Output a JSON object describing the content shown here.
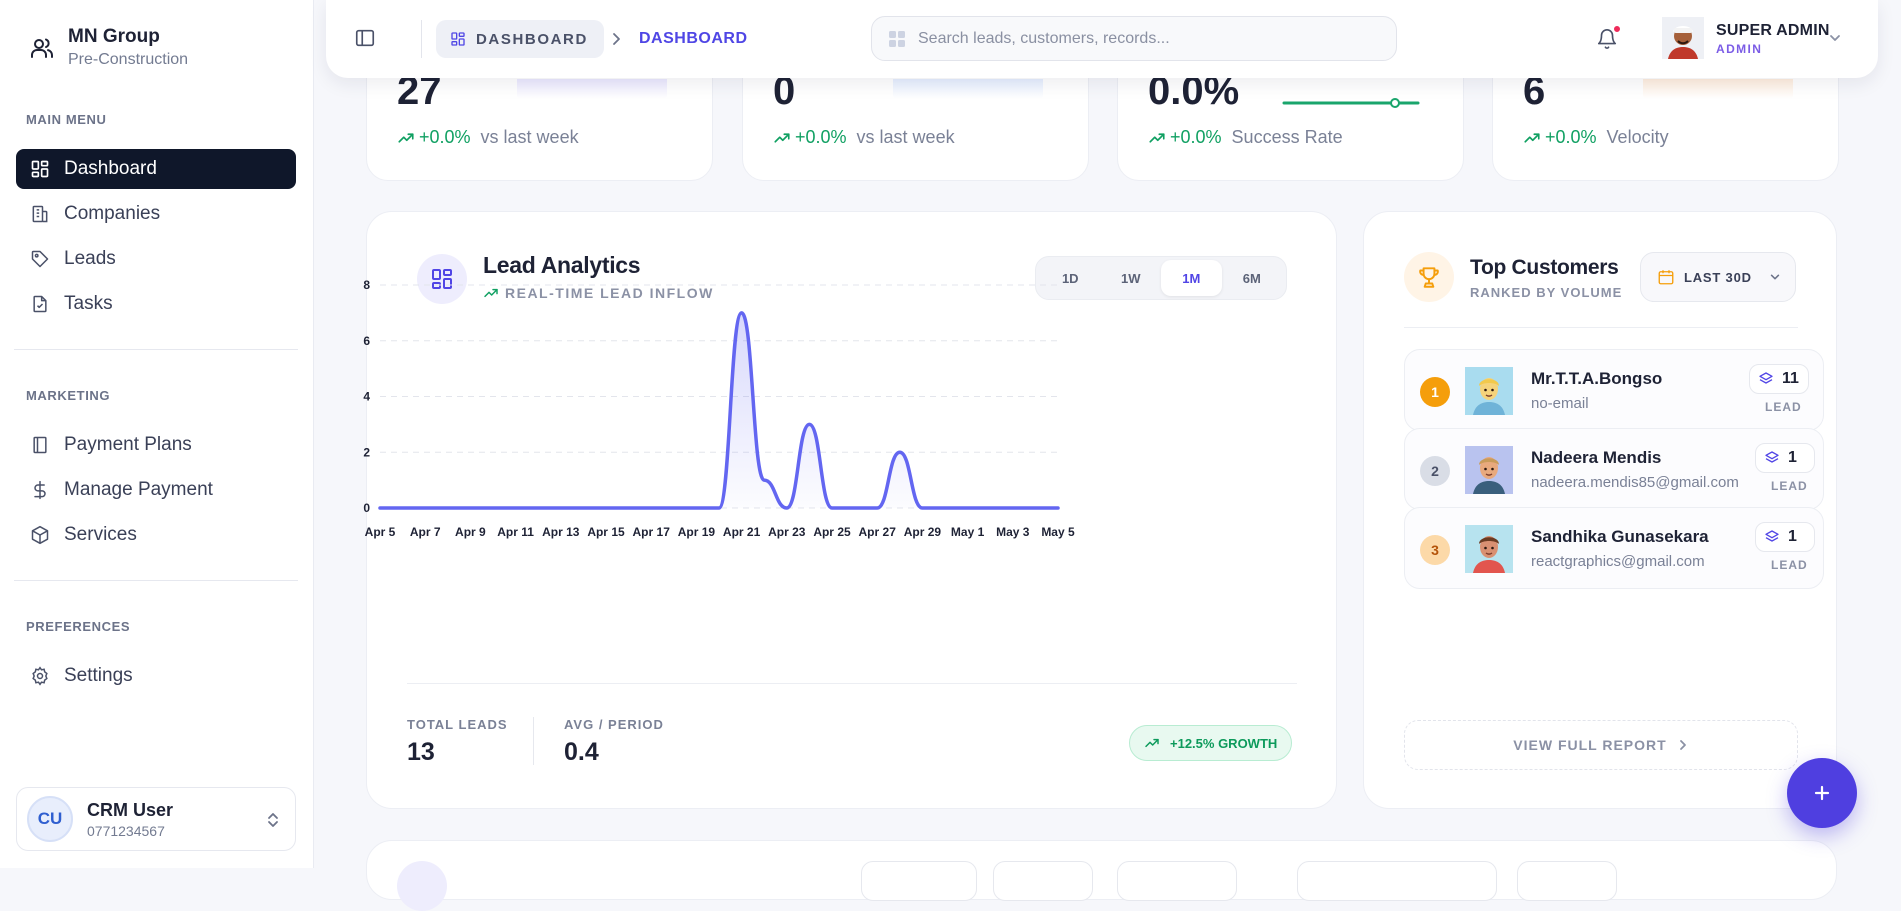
{
  "brand": {
    "title": "MN Group",
    "subtitle": "Pre-Construction"
  },
  "sidebar": {
    "sections": [
      {
        "label": "MAIN MENU"
      },
      {
        "label": "MARKETING"
      },
      {
        "label": "PREFERENCES"
      }
    ],
    "items": [
      {
        "label": "Dashboard",
        "icon": "dashboard-icon",
        "active": true
      },
      {
        "label": "Companies",
        "icon": "building-icon"
      },
      {
        "label": "Leads",
        "icon": "tag-icon"
      },
      {
        "label": "Tasks",
        "icon": "clipboard-icon"
      },
      {
        "label": "Payment Plans",
        "icon": "book-icon"
      },
      {
        "label": "Manage Payment",
        "icon": "dollar-icon"
      },
      {
        "label": "Services",
        "icon": "box-icon"
      },
      {
        "label": "Settings",
        "icon": "gear-icon"
      }
    ],
    "user": {
      "initials": "CU",
      "name": "CRM User",
      "phone": "0771234567"
    }
  },
  "header": {
    "breadcrumb_root": "DASHBOARD",
    "breadcrumb_current": "DASHBOARD",
    "search_placeholder": "Search leads, customers, records...",
    "profile_name": "SUPER ADMIN",
    "profile_role": "ADMIN"
  },
  "colors": {
    "accent": "#4f46e5",
    "positive": "#10a062",
    "sidebar_active": "#0f172a",
    "chart_line": "#6366f1",
    "notification": "#ef2b5a"
  },
  "stats": [
    {
      "value": "27",
      "change": "+0.0%",
      "label": "vs last week",
      "bar_color": "#ebe9ff"
    },
    {
      "value": "0",
      "change": "+0.0%",
      "label": "vs last week",
      "bar_color": "#e6efff"
    },
    {
      "value": "0.0%",
      "change": "+0.0%",
      "label": "Success Rate",
      "bar_color": "#1aa56c"
    },
    {
      "value": "6",
      "change": "+0.0%",
      "label": "Velocity",
      "bar_color": "#ffeede"
    }
  ],
  "analytics": {
    "title": "Lead Analytics",
    "subtitle": "REAL-TIME LEAD INFLOW",
    "ranges": [
      {
        "label": "1D",
        "active": false
      },
      {
        "label": "1W",
        "active": false
      },
      {
        "label": "1M",
        "active": true
      },
      {
        "label": "6M",
        "active": false
      }
    ],
    "total_leads_label": "TOTAL LEADS",
    "total_leads": "13",
    "avg_label": "AVG / PERIOD",
    "avg": "0.4",
    "growth": "+12.5% GROWTH"
  },
  "chart_data": {
    "type": "area",
    "x": [
      "Apr 5",
      "Apr 6",
      "Apr 7",
      "Apr 8",
      "Apr 9",
      "Apr 10",
      "Apr 11",
      "Apr 12",
      "Apr 13",
      "Apr 14",
      "Apr 15",
      "Apr 16",
      "Apr 17",
      "Apr 18",
      "Apr 19",
      "Apr 20",
      "Apr 21",
      "Apr 22",
      "Apr 23",
      "Apr 24",
      "Apr 25",
      "Apr 26",
      "Apr 27",
      "Apr 28",
      "Apr 29",
      "Apr 30",
      "May 1",
      "May 2",
      "May 3",
      "May 4",
      "May 5"
    ],
    "x_tick_labels": [
      "Apr 5",
      "Apr 7",
      "Apr 9",
      "Apr 11",
      "Apr 13",
      "Apr 15",
      "Apr 17",
      "Apr 19",
      "Apr 21",
      "Apr 23",
      "Apr 25",
      "Apr 27",
      "Apr 29",
      "May 1",
      "May 3",
      "May 5"
    ],
    "values": [
      0,
      0,
      0,
      0,
      0,
      0,
      0,
      0,
      0,
      0,
      0,
      0,
      0,
      0,
      0,
      0,
      7,
      1,
      0,
      3,
      0,
      0,
      0,
      2,
      0,
      0,
      0,
      0,
      0,
      0,
      0
    ],
    "y_ticks": [
      0,
      2,
      4,
      6,
      8
    ],
    "ylim": [
      0,
      8
    ],
    "grid": true,
    "title": "",
    "xlabel": "",
    "ylabel": ""
  },
  "customers": {
    "title": "Top Customers",
    "subtitle": "RANKED BY VOLUME",
    "period": "LAST 30D",
    "lead_caption": "LEAD",
    "view_report": "VIEW FULL REPORT",
    "rows": [
      {
        "rank": "1",
        "name": "Mr.T.T.A.Bongso",
        "email": "no-email",
        "leads": "11",
        "rank_bg": "#f59e0b",
        "rank_fg": "#ffffff",
        "skin": "#f5d37a",
        "bg": "#a9dcef",
        "shirt": "#6fb3d8",
        "hair": "#f2c94c"
      },
      {
        "rank": "2",
        "name": "Nadeera Mendis",
        "email": "nadeera.mendis85@gmail.com",
        "leads": "1",
        "rank_bg": "#d9dde6",
        "rank_fg": "#4a5168",
        "skin": "#e8a97d",
        "bg": "#b9c3ef",
        "shirt": "#3a5f7d",
        "hair": "#c99b5a"
      },
      {
        "rank": "3",
        "name": "Sandhika Gunasekara",
        "email": "reactgraphics@gmail.com",
        "leads": "1",
        "rank_bg": "#fcd9a8",
        "rank_fg": "#b45309",
        "skin": "#d99072",
        "bg": "#b7e3ef",
        "shirt": "#e2554e",
        "hair": "#6b3b22"
      }
    ]
  }
}
